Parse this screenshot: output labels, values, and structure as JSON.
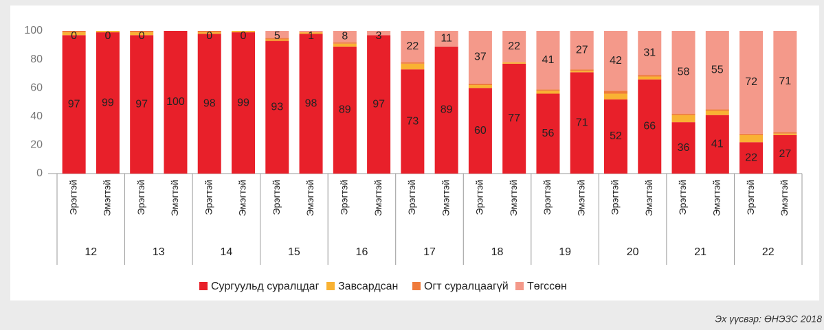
{
  "chart_data": {
    "type": "stacked_bar",
    "groups": [
      "12",
      "13",
      "14",
      "15",
      "16",
      "17",
      "18",
      "19",
      "20",
      "21",
      "22"
    ],
    "categories": [
      "Эрэгтэй",
      "Эмэгтэй",
      "Эрэгтэй",
      "Эмэгтэй",
      "Эрэгтэй",
      "Эмэгтэй",
      "Эрэгтэй",
      "Эмэгтэй",
      "Эрэгтэй",
      "Эмэгтэй",
      "Эрэгтэй",
      "Эмэгтэй",
      "Эрэгтэй",
      "Эмэгтэй",
      "Эрэгтэй",
      "Эмэгтэй",
      "Эрэгтэй",
      "Эмэгтэй",
      "Эрэгтэй",
      "Эмэгтэй",
      "Эрэгтэй",
      "Эмэгтэй"
    ],
    "series": [
      {
        "name": "Сургуульд суралцдаг",
        "color": "#e8202a",
        "show_labels": true,
        "values": [
          97,
          99,
          97,
          100,
          98,
          99,
          93,
          98,
          89,
          97,
          73,
          89,
          60,
          77,
          56,
          71,
          52,
          66,
          36,
          41,
          22,
          27
        ]
      },
      {
        "name": "Завсардсан",
        "color": "#f9b233",
        "show_labels": false,
        "values": [
          2,
          1,
          2,
          0,
          1,
          1,
          1,
          1,
          2,
          0,
          4,
          0,
          2,
          1,
          2,
          1,
          4,
          2,
          5,
          3,
          5,
          1
        ]
      },
      {
        "name": "Огт суралцаагүй",
        "color": "#ef7b3b",
        "show_labels": false,
        "values": [
          1,
          0,
          1,
          0,
          1,
          0,
          1,
          0,
          1,
          0,
          1,
          0,
          1,
          0,
          1,
          1,
          2,
          1,
          1,
          1,
          1,
          1
        ]
      },
      {
        "name": "Төгссөн",
        "color": "#f4998a",
        "show_labels": true,
        "values": [
          0,
          0,
          0,
          null,
          0,
          0,
          5,
          1,
          8,
          3,
          22,
          11,
          37,
          22,
          41,
          27,
          42,
          31,
          58,
          55,
          72,
          71
        ]
      }
    ],
    "ylim": [
      0,
      100
    ],
    "yticks": [
      0,
      20,
      40,
      60,
      80,
      100
    ],
    "grid": false,
    "legend": "bottom",
    "source": "Эх үүсвэр: ӨНЭЗС 2018"
  }
}
